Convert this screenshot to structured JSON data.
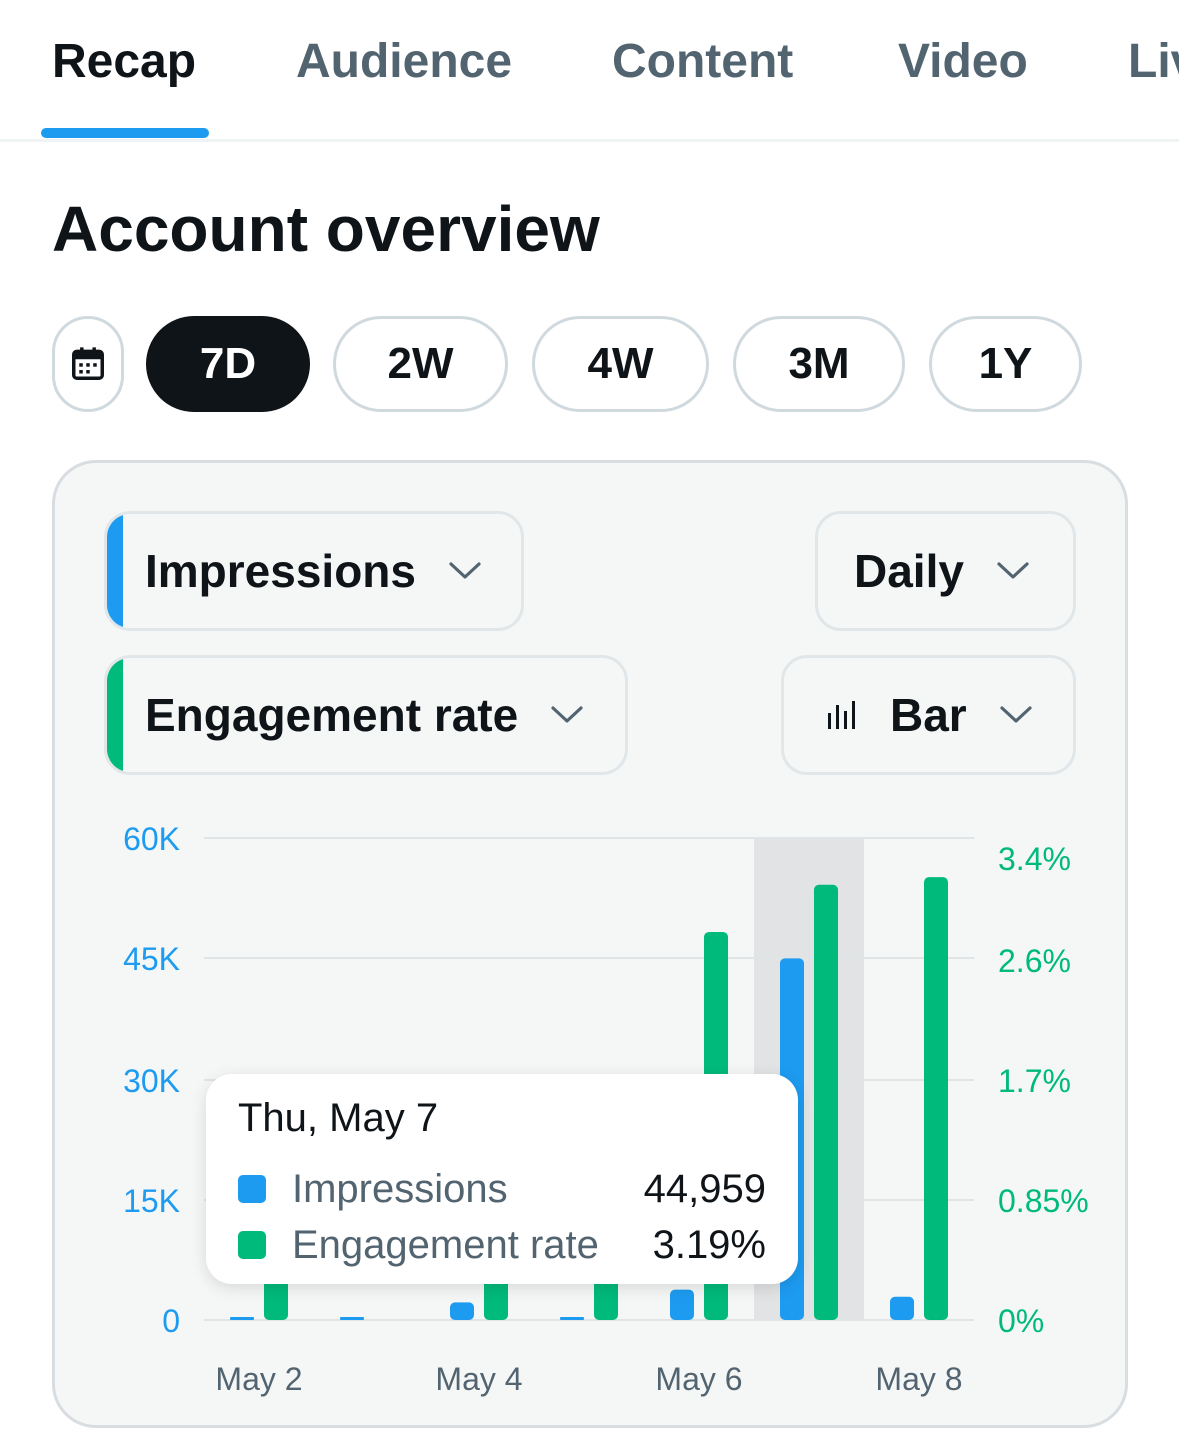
{
  "tabs": [
    {
      "label": "Recap",
      "active": true
    },
    {
      "label": "Audience",
      "active": false
    },
    {
      "label": "Content",
      "active": false
    },
    {
      "label": "Video",
      "active": false
    },
    {
      "label": "Live",
      "active": false
    }
  ],
  "page_title": "Account overview",
  "ranges": [
    {
      "label": "7D",
      "active": true
    },
    {
      "label": "2W",
      "active": false
    },
    {
      "label": "4W",
      "active": false
    },
    {
      "label": "3M",
      "active": false
    },
    {
      "label": "1Y",
      "active": false
    }
  ],
  "controls": {
    "metric1": "Impressions",
    "metric2": "Engagement rate",
    "interval": "Daily",
    "chart_type": "Bar"
  },
  "colors": {
    "impressions": "#1d9bf0",
    "engagement": "#00ba7c",
    "highlight": "#e1e3e4"
  },
  "tooltip": {
    "date": "Thu, May 7",
    "rows": [
      {
        "name": "Impressions",
        "value": "44,959"
      },
      {
        "name": "Engagement rate",
        "value": "3.19%"
      }
    ]
  },
  "chart_data": {
    "type": "bar",
    "categories": [
      "May 2",
      "May 3",
      "May 4",
      "May 5",
      "May 6",
      "May 7",
      "May 8"
    ],
    "x_tick_labels": [
      "May 2",
      "May 4",
      "May 6",
      "May 8"
    ],
    "highlighted": "May 7",
    "series": [
      {
        "name": "Impressions",
        "axis": "left",
        "values": [
          200,
          200,
          2200,
          200,
          3800,
          44959,
          2900
        ]
      },
      {
        "name": "Engagement rate",
        "axis": "right",
        "unit": "%",
        "values": [
          0.35,
          0,
          0.35,
          0.35,
          2.82,
          3.19,
          3.25
        ]
      }
    ],
    "y_left": {
      "ticks": [
        0,
        15000,
        30000,
        45000,
        60000
      ],
      "tick_labels": [
        "0",
        "15K",
        "30K",
        "45K",
        "60K"
      ]
    },
    "y_right": {
      "ticks": [
        0,
        0.85,
        1.7,
        2.6,
        3.4
      ],
      "tick_labels": [
        "0%",
        "0.85%",
        "1.7%",
        "2.6%",
        "3.4%"
      ]
    },
    "grid": true
  }
}
